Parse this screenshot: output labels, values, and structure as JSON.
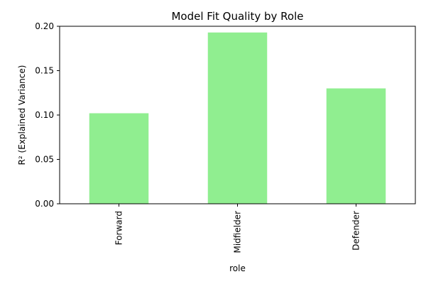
{
  "chart_data": {
    "type": "bar",
    "title": "Model Fit Quality by Role",
    "xlabel": "role",
    "ylabel": "R² (Explained Variance)",
    "categories": [
      "Forward",
      "Midfielder",
      "Defender"
    ],
    "values": [
      0.102,
      0.193,
      0.13
    ],
    "ylim": [
      0,
      0.2
    ],
    "y_ticks": [
      "0.00",
      "0.05",
      "0.10",
      "0.15",
      "0.20"
    ],
    "grid": false,
    "legend": "none",
    "bar_color": "#90ee90",
    "axis_color": "#000000",
    "background": "#ffffff"
  }
}
